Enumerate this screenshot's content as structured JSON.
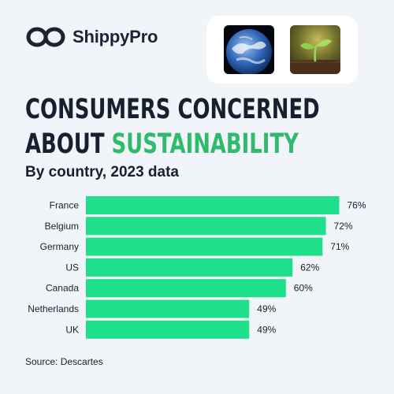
{
  "brand": {
    "name": "ShippyPro",
    "logo_icon": "infinity-chain-icon"
  },
  "images": [
    {
      "name": "earth-photo",
      "subject": "Earth"
    },
    {
      "name": "seedling-photo",
      "subject": "seedling"
    }
  ],
  "title": {
    "line1": "CONSUMERS CONCERNED",
    "line2_prefix": "ABOUT",
    "line2_accent": "SUSTAINABILITY"
  },
  "subtitle": "By country, 2023 data",
  "source": "Source: Descartes",
  "colors": {
    "bar": "#1ee08a",
    "accent": "#2fba6c",
    "text": "#17202e",
    "background": "#f1f4f9"
  },
  "chart_data": {
    "type": "bar",
    "orientation": "horizontal",
    "categories": [
      "France",
      "Belgium",
      "Germany",
      "US",
      "Canada",
      "Netherlands",
      "UK"
    ],
    "values": [
      76,
      72,
      71,
      62,
      60,
      49,
      49
    ],
    "value_labels": [
      "76%",
      "72%",
      "71%",
      "62%",
      "60%",
      "49%",
      "49%"
    ],
    "xlim": [
      0,
      100
    ],
    "grid": false,
    "legend": "none"
  }
}
